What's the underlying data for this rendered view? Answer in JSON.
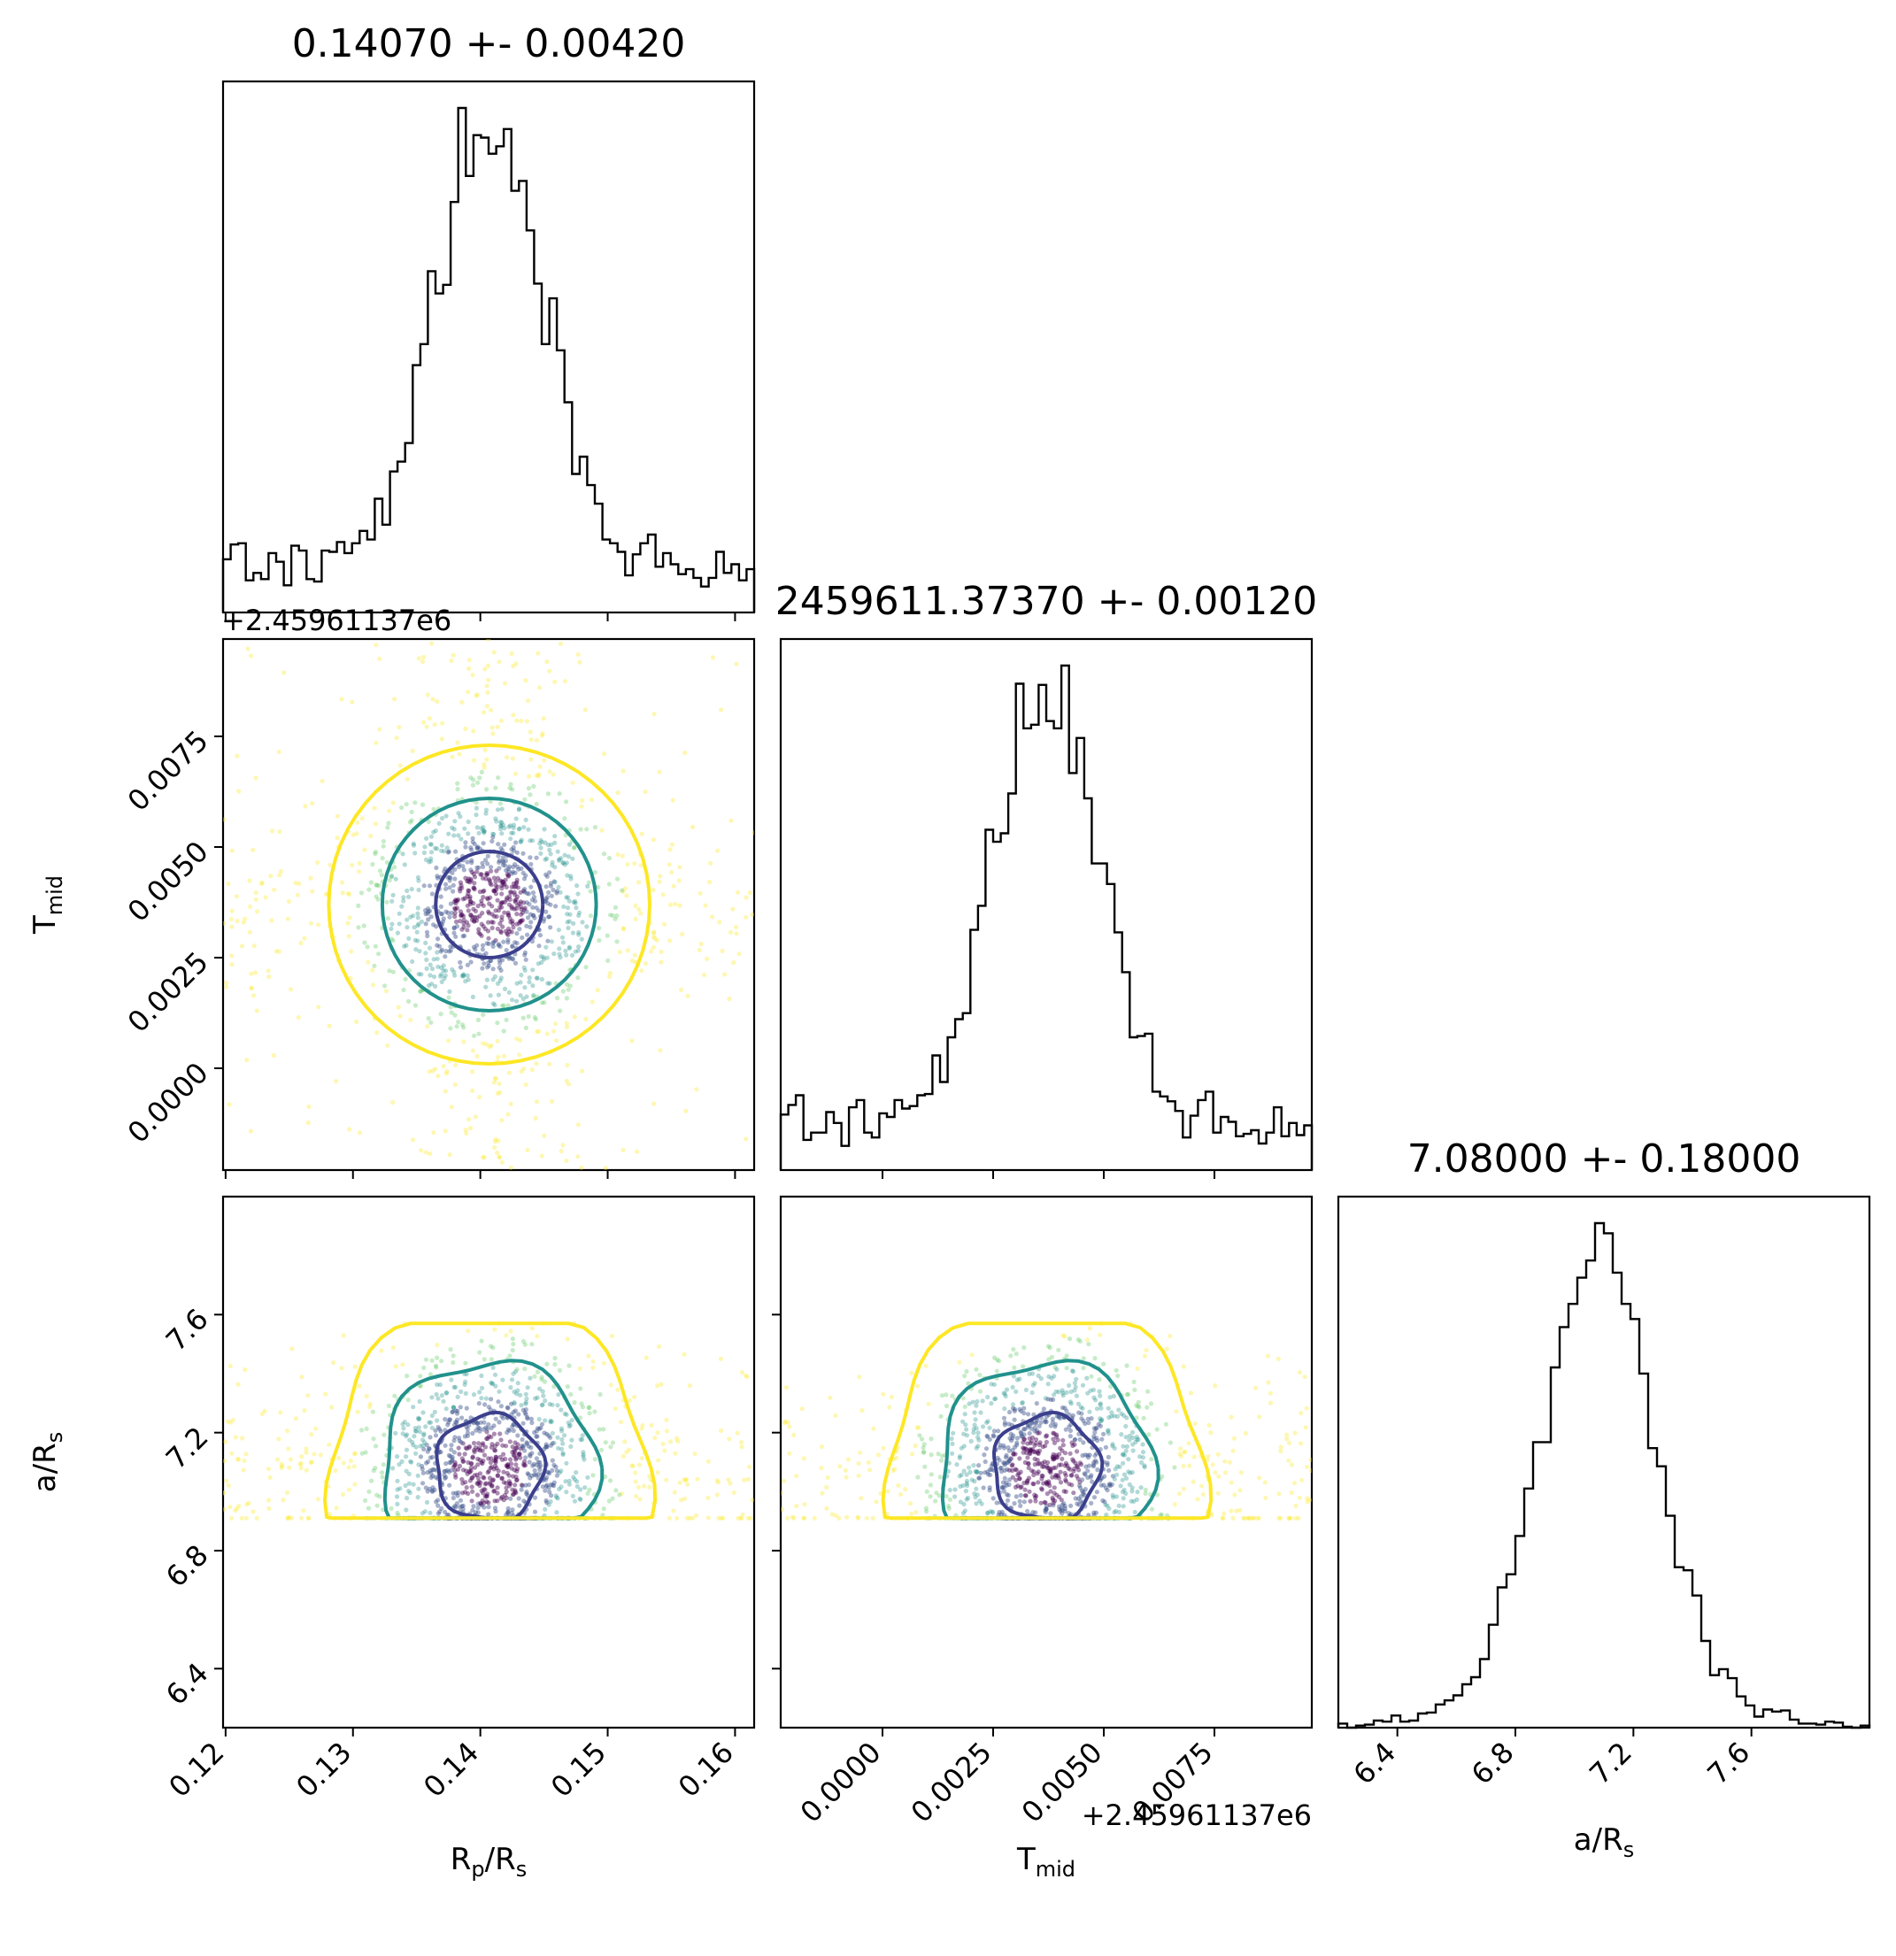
{
  "chart_data": {
    "type": "corner",
    "parameters": [
      {
        "label": "Rp/Rs",
        "median": 0.1407,
        "std": 0.0042,
        "range": [
          0.1198,
          0.1615
        ],
        "title": "0.14070 +- 0.00420",
        "ticks": [
          0.12,
          0.13,
          0.14,
          0.15,
          0.16
        ],
        "tick_labels": [
          "0.12",
          "0.13",
          "0.14",
          "0.15",
          "0.16"
        ]
      },
      {
        "label": "Tmid",
        "offset_label": "+2.45961137e6",
        "median": 0.0037,
        "std": 0.0012,
        "range": [
          -0.0023,
          0.0097
        ],
        "title": "2459611.37370 +- 0.00120",
        "ticks": [
          0.0,
          0.0025,
          0.005,
          0.0075
        ],
        "tick_labels": [
          "0.0000",
          "0.0025",
          "0.0050",
          "0.0075"
        ]
      },
      {
        "label": "a/Rs",
        "median": 7.08,
        "std": 0.18,
        "range": [
          6.2,
          8.0
        ],
        "title": "7.08000 +- 0.18000",
        "ticks": [
          6.4,
          6.8,
          7.2,
          7.6
        ],
        "tick_labels": [
          "6.4",
          "6.8",
          "7.2",
          "7.6"
        ]
      }
    ],
    "contour_colors": [
      "#3b3f8c",
      "#21918c",
      "#fde725"
    ],
    "scatter_colors": [
      "#440154",
      "#3b528b",
      "#21918c",
      "#5ec962",
      "#fde725"
    ],
    "grid": false
  }
}
